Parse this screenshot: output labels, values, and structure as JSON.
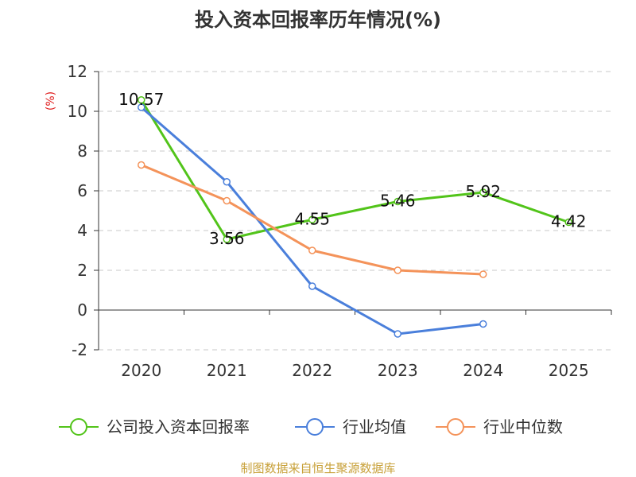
{
  "chart_data": {
    "type": "line",
    "title": "投入资本回报率历年情况(%)",
    "ylabel": "(%)",
    "xlabel": "",
    "categories": [
      "2020",
      "2021",
      "2022",
      "2023",
      "2024",
      "2025"
    ],
    "ylim": [
      -2,
      12
    ],
    "yticks": [
      -2,
      0,
      2,
      4,
      6,
      8,
      10,
      12
    ],
    "grid": true,
    "legend_position": "bottom",
    "series": [
      {
        "name": "公司投入资本回报率",
        "color": "#52c41a",
        "values": [
          10.57,
          3.56,
          4.55,
          5.46,
          5.92,
          4.42
        ],
        "labels": [
          "10.57",
          "3.56",
          "4.55",
          "5.46",
          "5.92",
          "4.42"
        ]
      },
      {
        "name": "行业均值",
        "color": "#4a7fdb",
        "values": [
          10.2,
          6.45,
          1.2,
          -1.2,
          -0.7,
          null
        ]
      },
      {
        "name": "行业中位数",
        "color": "#f4935a",
        "values": [
          7.3,
          5.5,
          3.0,
          2.0,
          1.8,
          null
        ]
      }
    ],
    "source": "制图数据来自恒生聚源数据库"
  }
}
